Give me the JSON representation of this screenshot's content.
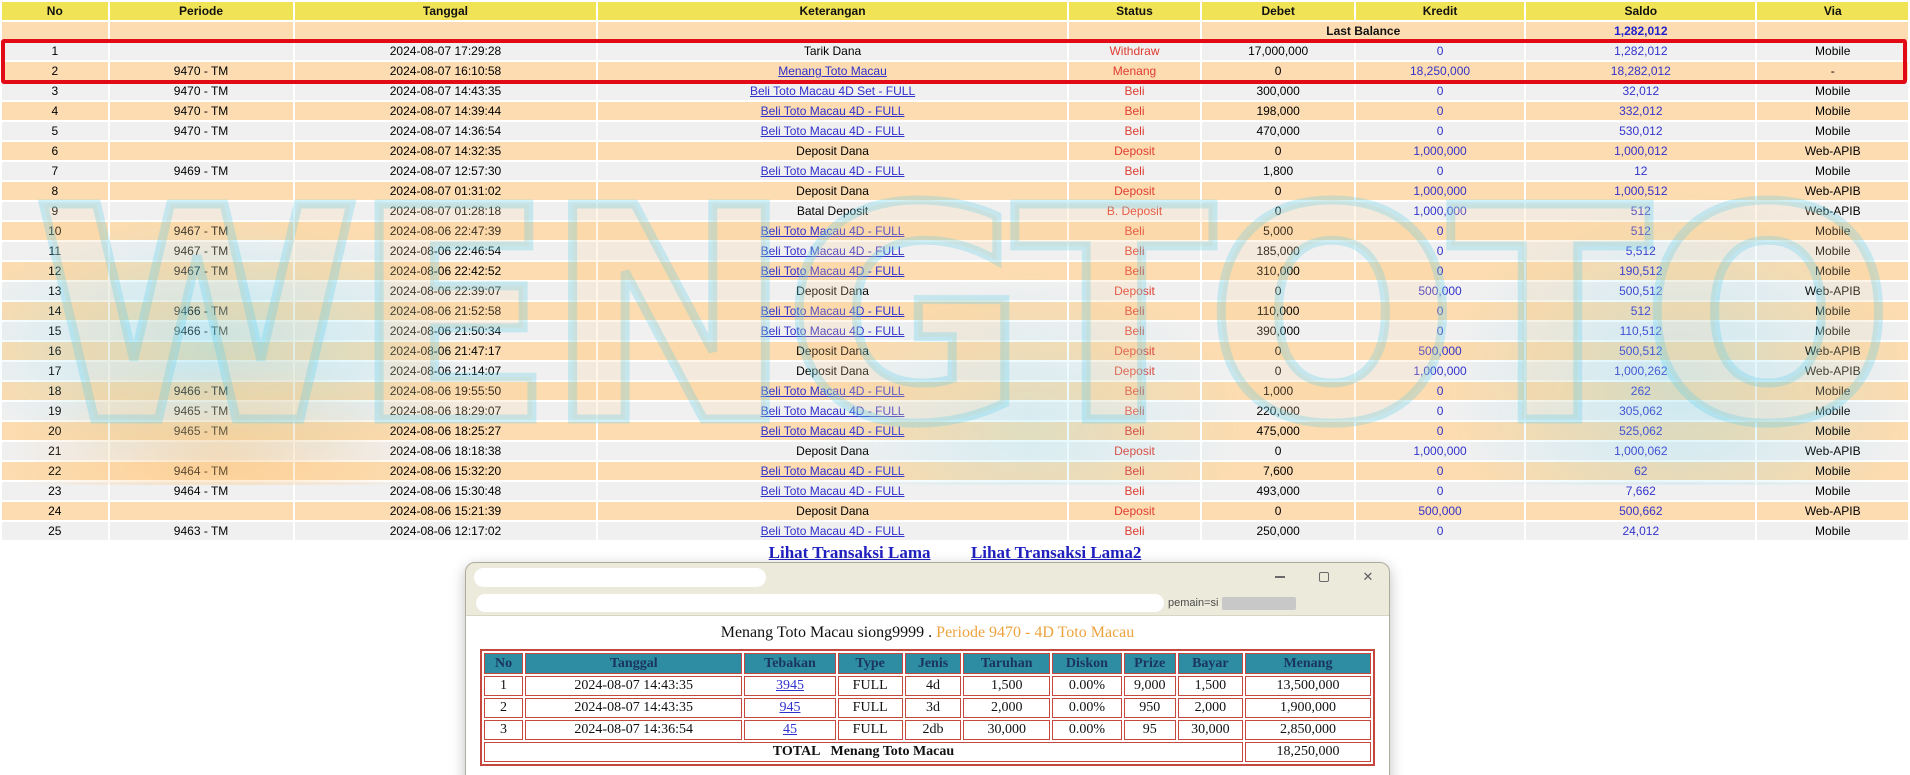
{
  "colors": {
    "header_yellow": "#F0E356",
    "row_gray": "#F0F0F0",
    "row_peach": "#FCDCB0",
    "status_red": "#E03C31",
    "number_blue": "#3333CC",
    "link_blue": "#3030CC",
    "annotation_red": "#E20A16",
    "popup_header_teal": "#2E8CA3",
    "popup_border_red": "#C5473E",
    "heading_orange": "#EDA33E"
  },
  "watermark": {
    "text": "WENGTOTO"
  },
  "main_table": {
    "columns": [
      "No",
      "Periode",
      "Tanggal",
      "Keterangan",
      "Status",
      "Debet",
      "Kredit",
      "Saldo",
      "Via"
    ],
    "last_balance": {
      "label": "Last Balance",
      "saldo": "1,282,012"
    },
    "rows": [
      {
        "no": "1",
        "periode": "",
        "tanggal": "2024-08-07 17:29:28",
        "keterangan": "Tarik Dana",
        "link": false,
        "status": "Withdraw",
        "debet": "17,000,000",
        "kredit": "0",
        "saldo": "1,282,012",
        "via": "Mobile"
      },
      {
        "no": "2",
        "periode": "9470 - TM",
        "tanggal": "2024-08-07 16:10:58",
        "keterangan": "Menang Toto Macau",
        "link": true,
        "status": "Menang",
        "debet": "0",
        "kredit": "18,250,000",
        "saldo": "18,282,012",
        "via": "-"
      },
      {
        "no": "3",
        "periode": "9470 - TM",
        "tanggal": "2024-08-07 14:43:35",
        "keterangan": "Beli Toto Macau 4D Set - FULL",
        "link": true,
        "status": "Beli",
        "debet": "300,000",
        "kredit": "0",
        "saldo": "32,012",
        "via": "Mobile"
      },
      {
        "no": "4",
        "periode": "9470 - TM",
        "tanggal": "2024-08-07 14:39:44",
        "keterangan": "Beli Toto Macau 4D - FULL",
        "link": true,
        "status": "Beli",
        "debet": "198,000",
        "kredit": "0",
        "saldo": "332,012",
        "via": "Mobile"
      },
      {
        "no": "5",
        "periode": "9470 - TM",
        "tanggal": "2024-08-07 14:36:54",
        "keterangan": "Beli Toto Macau 4D - FULL",
        "link": true,
        "status": "Beli",
        "debet": "470,000",
        "kredit": "0",
        "saldo": "530,012",
        "via": "Mobile"
      },
      {
        "no": "6",
        "periode": "",
        "tanggal": "2024-08-07 14:32:35",
        "keterangan": "Deposit Dana",
        "link": false,
        "status": "Deposit",
        "debet": "0",
        "kredit": "1,000,000",
        "saldo": "1,000,012",
        "via": "Web-APIB"
      },
      {
        "no": "7",
        "periode": "9469 - TM",
        "tanggal": "2024-08-07 12:57:30",
        "keterangan": "Beli Toto Macau 4D - FULL",
        "link": true,
        "status": "Beli",
        "debet": "1,800",
        "kredit": "0",
        "saldo": "12",
        "via": "Mobile"
      },
      {
        "no": "8",
        "periode": "",
        "tanggal": "2024-08-07 01:31:02",
        "keterangan": "Deposit Dana",
        "link": false,
        "status": "Deposit",
        "debet": "0",
        "kredit": "1,000,000",
        "saldo": "1,000,512",
        "via": "Web-APIB"
      },
      {
        "no": "9",
        "periode": "",
        "tanggal": "2024-08-07 01:28:18",
        "keterangan": "Batal Deposit",
        "link": false,
        "status": "B. Deposit",
        "debet": "0",
        "kredit": "1,000,000",
        "saldo": "512",
        "via": "Web-APIB"
      },
      {
        "no": "10",
        "periode": "9467 - TM",
        "tanggal": "2024-08-06 22:47:39",
        "keterangan": "Beli Toto Macau 4D - FULL",
        "link": true,
        "status": "Beli",
        "debet": "5,000",
        "kredit": "0",
        "saldo": "512",
        "via": "Mobile"
      },
      {
        "no": "11",
        "periode": "9467 - TM",
        "tanggal": "2024-08-06 22:46:54",
        "keterangan": "Beli Toto Macau 4D - FULL",
        "link": true,
        "status": "Beli",
        "debet": "185,000",
        "kredit": "0",
        "saldo": "5,512",
        "via": "Mobile"
      },
      {
        "no": "12",
        "periode": "9467 - TM",
        "tanggal": "2024-08-06 22:42:52",
        "keterangan": "Beli Toto Macau 4D - FULL",
        "link": true,
        "status": "Beli",
        "debet": "310,000",
        "kredit": "0",
        "saldo": "190,512",
        "via": "Mobile"
      },
      {
        "no": "13",
        "periode": "",
        "tanggal": "2024-08-06 22:39:07",
        "keterangan": "Deposit Dana",
        "link": false,
        "status": "Deposit",
        "debet": "0",
        "kredit": "500,000",
        "saldo": "500,512",
        "via": "Web-APIB"
      },
      {
        "no": "14",
        "periode": "9466 - TM",
        "tanggal": "2024-08-06 21:52:58",
        "keterangan": "Beli Toto Macau 4D - FULL",
        "link": true,
        "status": "Beli",
        "debet": "110,000",
        "kredit": "0",
        "saldo": "512",
        "via": "Mobile"
      },
      {
        "no": "15",
        "periode": "9466 - TM",
        "tanggal": "2024-08-06 21:50:34",
        "keterangan": "Beli Toto Macau 4D - FULL",
        "link": true,
        "status": "Beli",
        "debet": "390,000",
        "kredit": "0",
        "saldo": "110,512",
        "via": "Mobile"
      },
      {
        "no": "16",
        "periode": "",
        "tanggal": "2024-08-06 21:47:17",
        "keterangan": "Deposit Dana",
        "link": false,
        "status": "Deposit",
        "debet": "0",
        "kredit": "500,000",
        "saldo": "500,512",
        "via": "Web-APIB"
      },
      {
        "no": "17",
        "periode": "",
        "tanggal": "2024-08-06 21:14:07",
        "keterangan": "Deposit Dana",
        "link": false,
        "status": "Deposit",
        "debet": "0",
        "kredit": "1,000,000",
        "saldo": "1,000,262",
        "via": "Web-APIB"
      },
      {
        "no": "18",
        "periode": "9466 - TM",
        "tanggal": "2024-08-06 19:55:50",
        "keterangan": "Beli Toto Macau 4D - FULL",
        "link": true,
        "status": "Beli",
        "debet": "1,000",
        "kredit": "0",
        "saldo": "262",
        "via": "Mobile"
      },
      {
        "no": "19",
        "periode": "9465 - TM",
        "tanggal": "2024-08-06 18:29:07",
        "keterangan": "Beli Toto Macau 4D - FULL",
        "link": true,
        "status": "Beli",
        "debet": "220,000",
        "kredit": "0",
        "saldo": "305,062",
        "via": "Mobile"
      },
      {
        "no": "20",
        "periode": "9465 - TM",
        "tanggal": "2024-08-06 18:25:27",
        "keterangan": "Beli Toto Macau 4D - FULL",
        "link": true,
        "status": "Beli",
        "debet": "475,000",
        "kredit": "0",
        "saldo": "525,062",
        "via": "Mobile"
      },
      {
        "no": "21",
        "periode": "",
        "tanggal": "2024-08-06 18:18:38",
        "keterangan": "Deposit Dana",
        "link": false,
        "status": "Deposit",
        "debet": "0",
        "kredit": "1,000,000",
        "saldo": "1,000,062",
        "via": "Web-APIB"
      },
      {
        "no": "22",
        "periode": "9464 - TM",
        "tanggal": "2024-08-06 15:32:20",
        "keterangan": "Beli Toto Macau 4D - FULL",
        "link": true,
        "status": "Beli",
        "debet": "7,600",
        "kredit": "0",
        "saldo": "62",
        "via": "Mobile"
      },
      {
        "no": "23",
        "periode": "9464 - TM",
        "tanggal": "2024-08-06 15:30:48",
        "keterangan": "Beli Toto Macau 4D - FULL",
        "link": true,
        "status": "Beli",
        "debet": "493,000",
        "kredit": "0",
        "saldo": "7,662",
        "via": "Mobile"
      },
      {
        "no": "24",
        "periode": "",
        "tanggal": "2024-08-06 15:21:39",
        "keterangan": "Deposit Dana",
        "link": false,
        "status": "Deposit",
        "debet": "0",
        "kredit": "500,000",
        "saldo": "500,662",
        "via": "Web-APIB"
      },
      {
        "no": "25",
        "periode": "9463 - TM",
        "tanggal": "2024-08-06 12:17:02",
        "keterangan": "Beli Toto Macau 4D - FULL",
        "link": true,
        "status": "Beli",
        "debet": "250,000",
        "kredit": "0",
        "saldo": "24,012",
        "via": "Mobile"
      }
    ],
    "links": {
      "old1": "Lihat Transaksi Lama",
      "old2": "Lihat Transaksi Lama2"
    }
  },
  "popup": {
    "address": {
      "visible_text": "pemain=si"
    },
    "heading": {
      "black": "Menang Toto Macau siong9999 .",
      "orange": "Periode 9470 - 4D Toto Macau"
    },
    "table": {
      "columns": [
        "No",
        "Tanggal",
        "Tebakan",
        "Type",
        "Jenis",
        "Taruhan",
        "Diskon",
        "Prize",
        "Bayar",
        "Menang"
      ],
      "rows": [
        {
          "no": "1",
          "tanggal": "2024-08-07 14:43:35",
          "tebakan": "3945",
          "type": "FULL",
          "jenis": "4d",
          "taruhan": "1,500",
          "diskon": "0.00%",
          "prize": "9,000",
          "bayar": "1,500",
          "menang": "13,500,000"
        },
        {
          "no": "2",
          "tanggal": "2024-08-07 14:43:35",
          "tebakan": "945",
          "type": "FULL",
          "jenis": "3d",
          "taruhan": "2,000",
          "diskon": "0.00%",
          "prize": "950",
          "bayar": "2,000",
          "menang": "1,900,000"
        },
        {
          "no": "3",
          "tanggal": "2024-08-07 14:36:54",
          "tebakan": "45",
          "type": "FULL",
          "jenis": "2db",
          "taruhan": "30,000",
          "diskon": "0.00%",
          "prize": "95",
          "bayar": "30,000",
          "menang": "2,850,000"
        }
      ],
      "total": {
        "label": "TOTAL",
        "name": "Menang Toto Macau",
        "value": "18,250,000"
      }
    }
  }
}
